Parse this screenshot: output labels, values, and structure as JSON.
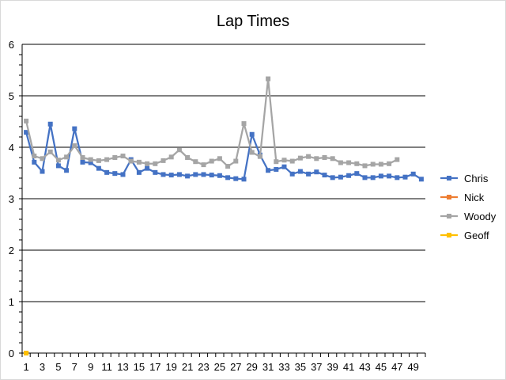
{
  "chart_data": {
    "type": "line",
    "title": "Lap Times",
    "xlabel": "",
    "ylabel": "",
    "ylim": [
      0,
      6
    ],
    "yticks": [
      0,
      1,
      2,
      3,
      4,
      5,
      6
    ],
    "xlim": [
      1,
      50
    ],
    "xtick_labels": [
      1,
      3,
      5,
      7,
      9,
      11,
      13,
      15,
      17,
      19,
      21,
      23,
      25,
      27,
      29,
      31,
      33,
      35,
      37,
      39,
      41,
      43,
      45,
      47,
      49
    ],
    "grid": "horizontal",
    "legend": "right",
    "series": [
      {
        "name": "Chris",
        "color": "#4472C4",
        "x": [
          1,
          2,
          3,
          4,
          5,
          6,
          7,
          8,
          9,
          10,
          11,
          12,
          13,
          14,
          15,
          16,
          17,
          18,
          19,
          20,
          21,
          22,
          23,
          24,
          25,
          26,
          27,
          28,
          29,
          30,
          31,
          32,
          33,
          34,
          35,
          36,
          37,
          38,
          39,
          40,
          41,
          42,
          43,
          44,
          45,
          46,
          47,
          48,
          49,
          50
        ],
        "values": [
          4.29,
          3.71,
          3.53,
          4.45,
          3.64,
          3.55,
          4.36,
          3.71,
          3.7,
          3.59,
          3.51,
          3.49,
          3.47,
          3.76,
          3.51,
          3.59,
          3.51,
          3.47,
          3.46,
          3.47,
          3.44,
          3.47,
          3.47,
          3.46,
          3.45,
          3.41,
          3.39,
          3.38,
          4.25,
          3.85,
          3.55,
          3.57,
          3.62,
          3.48,
          3.53,
          3.48,
          3.52,
          3.46,
          3.41,
          3.42,
          3.45,
          3.49,
          3.41,
          3.41,
          3.44,
          3.44,
          3.41,
          3.42,
          3.48,
          3.38
        ]
      },
      {
        "name": "Nick",
        "color": "#ED7D31",
        "x": [
          1
        ],
        "values": [
          0
        ]
      },
      {
        "name": "Woody",
        "color": "#A5A5A5",
        "x": [
          1,
          2,
          3,
          4,
          5,
          6,
          7,
          8,
          9,
          10,
          11,
          12,
          13,
          14,
          15,
          16,
          17,
          18,
          19,
          20,
          21,
          22,
          23,
          24,
          25,
          26,
          27,
          28,
          29,
          30,
          31,
          32,
          33,
          34,
          35,
          36,
          37,
          38,
          39,
          40,
          41,
          42,
          43,
          44,
          45,
          46,
          47
        ],
        "values": [
          4.51,
          3.83,
          3.78,
          3.91,
          3.75,
          3.81,
          4.03,
          3.8,
          3.76,
          3.74,
          3.76,
          3.8,
          3.83,
          3.73,
          3.71,
          3.68,
          3.68,
          3.74,
          3.81,
          3.95,
          3.8,
          3.72,
          3.66,
          3.73,
          3.78,
          3.63,
          3.73,
          4.46,
          3.9,
          3.82,
          5.33,
          3.72,
          3.75,
          3.73,
          3.79,
          3.82,
          3.78,
          3.8,
          3.78,
          3.7,
          3.7,
          3.68,
          3.64,
          3.67,
          3.67,
          3.68,
          3.76
        ]
      },
      {
        "name": "Geoff",
        "color": "#FFC000",
        "x": [
          1
        ],
        "values": [
          0
        ]
      }
    ]
  }
}
